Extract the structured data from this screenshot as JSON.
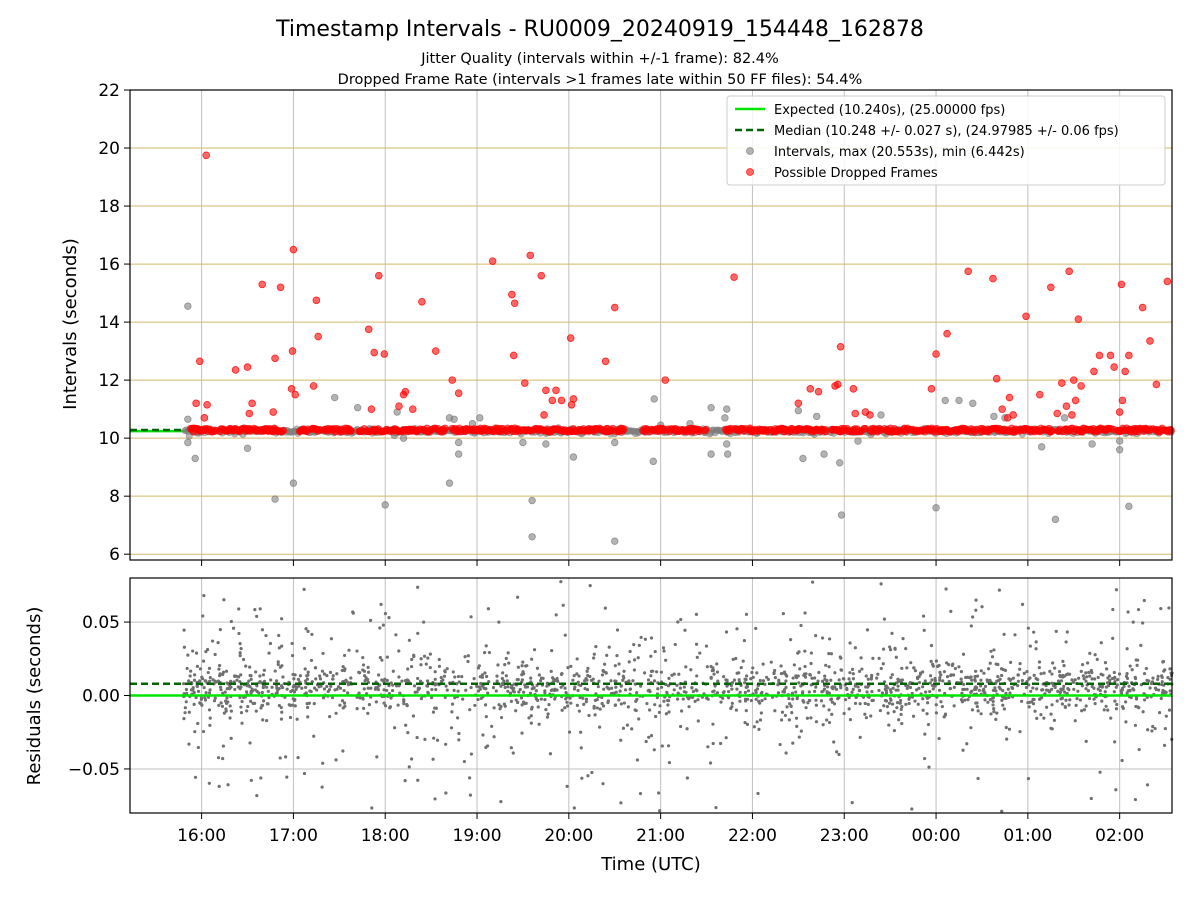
{
  "chart_data": {
    "type": "scatter",
    "title": "Timestamp Intervals - RU0009_20240919_154448_162878",
    "subtitle_1": "Jitter Quality (intervals within +/-1 frame): 82.4%",
    "subtitle_2": "Dropped Frame Rate (intervals >1 frames late within 50 FF files): 54.4%",
    "xlabel": "Time (UTC)",
    "x_tick_labels": [
      "16:00",
      "17:00",
      "18:00",
      "19:00",
      "20:00",
      "21:00",
      "22:00",
      "23:00",
      "00:00",
      "01:00",
      "02:00"
    ],
    "x_ticks_hours": [
      16,
      17,
      18,
      19,
      20,
      21,
      22,
      23,
      24,
      25,
      26
    ],
    "xlim_hours": [
      15.22,
      26.57
    ],
    "top_panel": {
      "ylabel": "Intervals (seconds)",
      "ylim": [
        5.8,
        22
      ],
      "y_ticks": [
        6,
        8,
        10,
        12,
        14,
        16,
        18,
        20,
        22
      ],
      "grid": "vertical gray lines, horizontal goldenrod lines",
      "legend_position": "top-right",
      "legend": [
        "Expected (10.240s), (25.00000 fps)",
        "Median (10.248 +/- 0.027 s), (24.97985 +/- 0.06 fps)",
        "Intervals, max (20.553s), min (6.442s)",
        "Possible Dropped Frames"
      ],
      "expected_interval": 10.24,
      "median_interval": 10.248,
      "series": [
        {
          "name": "Possible Dropped Frames",
          "color": "#ff0000",
          "points": [
            [
              16.05,
              19.75
            ],
            [
              15.98,
              12.65
            ],
            [
              15.94,
              11.2
            ],
            [
              16.06,
              11.15
            ],
            [
              16.03,
              10.7
            ],
            [
              16.37,
              12.35
            ],
            [
              16.5,
              12.45
            ],
            [
              16.55,
              11.2
            ],
            [
              16.52,
              10.85
            ],
            [
              16.66,
              15.3
            ],
            [
              16.8,
              12.75
            ],
            [
              16.86,
              15.2
            ],
            [
              16.78,
              10.9
            ],
            [
              17.0,
              16.5
            ],
            [
              16.99,
              13.0
            ],
            [
              16.98,
              11.7
            ],
            [
              17.02,
              11.5
            ],
            [
              17.25,
              14.75
            ],
            [
              17.27,
              13.5
            ],
            [
              17.22,
              11.8
            ],
            [
              17.82,
              13.75
            ],
            [
              17.88,
              12.95
            ],
            [
              17.93,
              15.6
            ],
            [
              17.99,
              12.9
            ],
            [
              17.85,
              11.0
            ],
            [
              18.2,
              11.5
            ],
            [
              18.22,
              11.6
            ],
            [
              18.15,
              11.1
            ],
            [
              18.3,
              11.0
            ],
            [
              18.4,
              14.7
            ],
            [
              18.55,
              13.0
            ],
            [
              18.73,
              12.0
            ],
            [
              18.8,
              11.55
            ],
            [
              19.17,
              16.1
            ],
            [
              19.38,
              14.95
            ],
            [
              19.41,
              14.65
            ],
            [
              19.4,
              12.85
            ],
            [
              19.52,
              11.9
            ],
            [
              19.58,
              16.3
            ],
            [
              19.7,
              15.6
            ],
            [
              19.75,
              11.65
            ],
            [
              19.73,
              10.8
            ],
            [
              19.82,
              11.3
            ],
            [
              19.86,
              11.65
            ],
            [
              19.92,
              11.3
            ],
            [
              20.02,
              13.45
            ],
            [
              20.05,
              11.35
            ],
            [
              20.03,
              11.15
            ],
            [
              20.4,
              12.65
            ],
            [
              20.5,
              14.5
            ],
            [
              21.05,
              12.0
            ],
            [
              21.8,
              15.55
            ],
            [
              22.5,
              11.2
            ],
            [
              22.63,
              11.7
            ],
            [
              22.72,
              11.6
            ],
            [
              22.9,
              11.8
            ],
            [
              22.96,
              13.15
            ],
            [
              22.93,
              11.85
            ],
            [
              23.1,
              11.7
            ],
            [
              23.12,
              10.85
            ],
            [
              23.28,
              10.8
            ],
            [
              23.23,
              10.9
            ],
            [
              23.95,
              11.7
            ],
            [
              24.0,
              12.9
            ],
            [
              24.12,
              13.6
            ],
            [
              24.35,
              15.75
            ],
            [
              24.62,
              15.5
            ],
            [
              24.66,
              12.05
            ],
            [
              24.72,
              11.0
            ],
            [
              24.8,
              11.4
            ],
            [
              24.84,
              10.8
            ],
            [
              24.78,
              10.7
            ],
            [
              24.98,
              14.2
            ],
            [
              25.13,
              11.5
            ],
            [
              25.25,
              15.2
            ],
            [
              25.32,
              10.85
            ],
            [
              25.37,
              11.9
            ],
            [
              25.42,
              11.1
            ],
            [
              25.45,
              15.75
            ],
            [
              25.5,
              12.0
            ],
            [
              25.52,
              11.3
            ],
            [
              25.55,
              14.1
            ],
            [
              25.48,
              10.8
            ],
            [
              25.58,
              11.8
            ],
            [
              25.72,
              12.3
            ],
            [
              25.78,
              12.85
            ],
            [
              25.9,
              12.85
            ],
            [
              25.94,
              12.45
            ],
            [
              26.02,
              15.3
            ],
            [
              26.06,
              12.3
            ],
            [
              26.1,
              12.85
            ],
            [
              26.03,
              11.3
            ],
            [
              26.0,
              10.9
            ],
            [
              26.25,
              14.5
            ],
            [
              26.33,
              13.35
            ],
            [
              26.4,
              11.85
            ],
            [
              26.52,
              15.4
            ]
          ]
        },
        {
          "name": "Intervals, max (20.553s), min (6.442s)",
          "color": "#808080",
          "points": [
            [
              15.85,
              14.55
            ],
            [
              15.85,
              10.65
            ],
            [
              15.85,
              9.85
            ],
            [
              15.93,
              9.3
            ],
            [
              16.5,
              9.65
            ],
            [
              16.8,
              7.9
            ],
            [
              17.0,
              8.45
            ],
            [
              17.45,
              11.4
            ],
            [
              17.7,
              11.05
            ],
            [
              18.0,
              7.7
            ],
            [
              18.13,
              10.9
            ],
            [
              18.1,
              10.1
            ],
            [
              18.2,
              10.0
            ],
            [
              18.7,
              8.45
            ],
            [
              18.7,
              10.7
            ],
            [
              18.75,
              10.65
            ],
            [
              18.8,
              9.85
            ],
            [
              18.8,
              9.45
            ],
            [
              18.95,
              10.5
            ],
            [
              19.03,
              10.7
            ],
            [
              19.5,
              9.85
            ],
            [
              19.6,
              7.85
            ],
            [
              19.6,
              6.6
            ],
            [
              19.75,
              9.8
            ],
            [
              20.05,
              9.35
            ],
            [
              20.5,
              9.85
            ],
            [
              20.5,
              6.45
            ],
            [
              20.92,
              9.2
            ],
            [
              20.93,
              11.35
            ],
            [
              21.0,
              10.45
            ],
            [
              21.32,
              10.5
            ],
            [
              21.55,
              9.45
            ],
            [
              21.55,
              11.05
            ],
            [
              21.7,
              10.7
            ],
            [
              21.72,
              11.0
            ],
            [
              21.72,
              9.8
            ],
            [
              21.73,
              9.45
            ],
            [
              22.5,
              10.95
            ],
            [
              22.55,
              9.3
            ],
            [
              22.7,
              10.75
            ],
            [
              22.78,
              9.45
            ],
            [
              22.95,
              9.15
            ],
            [
              22.97,
              7.35
            ],
            [
              23.15,
              9.9
            ],
            [
              23.4,
              10.8
            ],
            [
              24.0,
              7.6
            ],
            [
              24.1,
              11.3
            ],
            [
              24.25,
              11.3
            ],
            [
              24.4,
              11.2
            ],
            [
              24.63,
              10.75
            ],
            [
              24.75,
              10.7
            ],
            [
              25.15,
              9.7
            ],
            [
              25.3,
              7.2
            ],
            [
              25.4,
              10.7
            ],
            [
              25.7,
              9.8
            ],
            [
              26.0,
              9.6
            ],
            [
              26.1,
              7.65
            ],
            [
              26.0,
              9.9
            ]
          ]
        }
      ]
    },
    "bottom_panel": {
      "ylabel": "Residuals (seconds)",
      "ylim": [
        -0.08,
        0.08
      ],
      "y_ticks": [
        -0.05,
        0.0,
        0.05
      ],
      "y_tick_labels": [
        "−0.05",
        "0.00",
        "0.05"
      ],
      "expected_residual": 0.0,
      "median_residual": 0.008,
      "series": [
        {
          "name": "Residuals",
          "color": "#707070",
          "distribution": "dense band around +0.005 s, scattered to about +/-0.08 s, x from 15.8 to 26.57 h",
          "approx_point_count": 2000
        }
      ]
    },
    "colors": {
      "expected_line": "#00e600",
      "median_line": "#006400",
      "intervals": "#808080",
      "dropped": "#ff0000",
      "top_grid_h": "#d2b96a",
      "grid_v": "#c0c0c0"
    }
  }
}
